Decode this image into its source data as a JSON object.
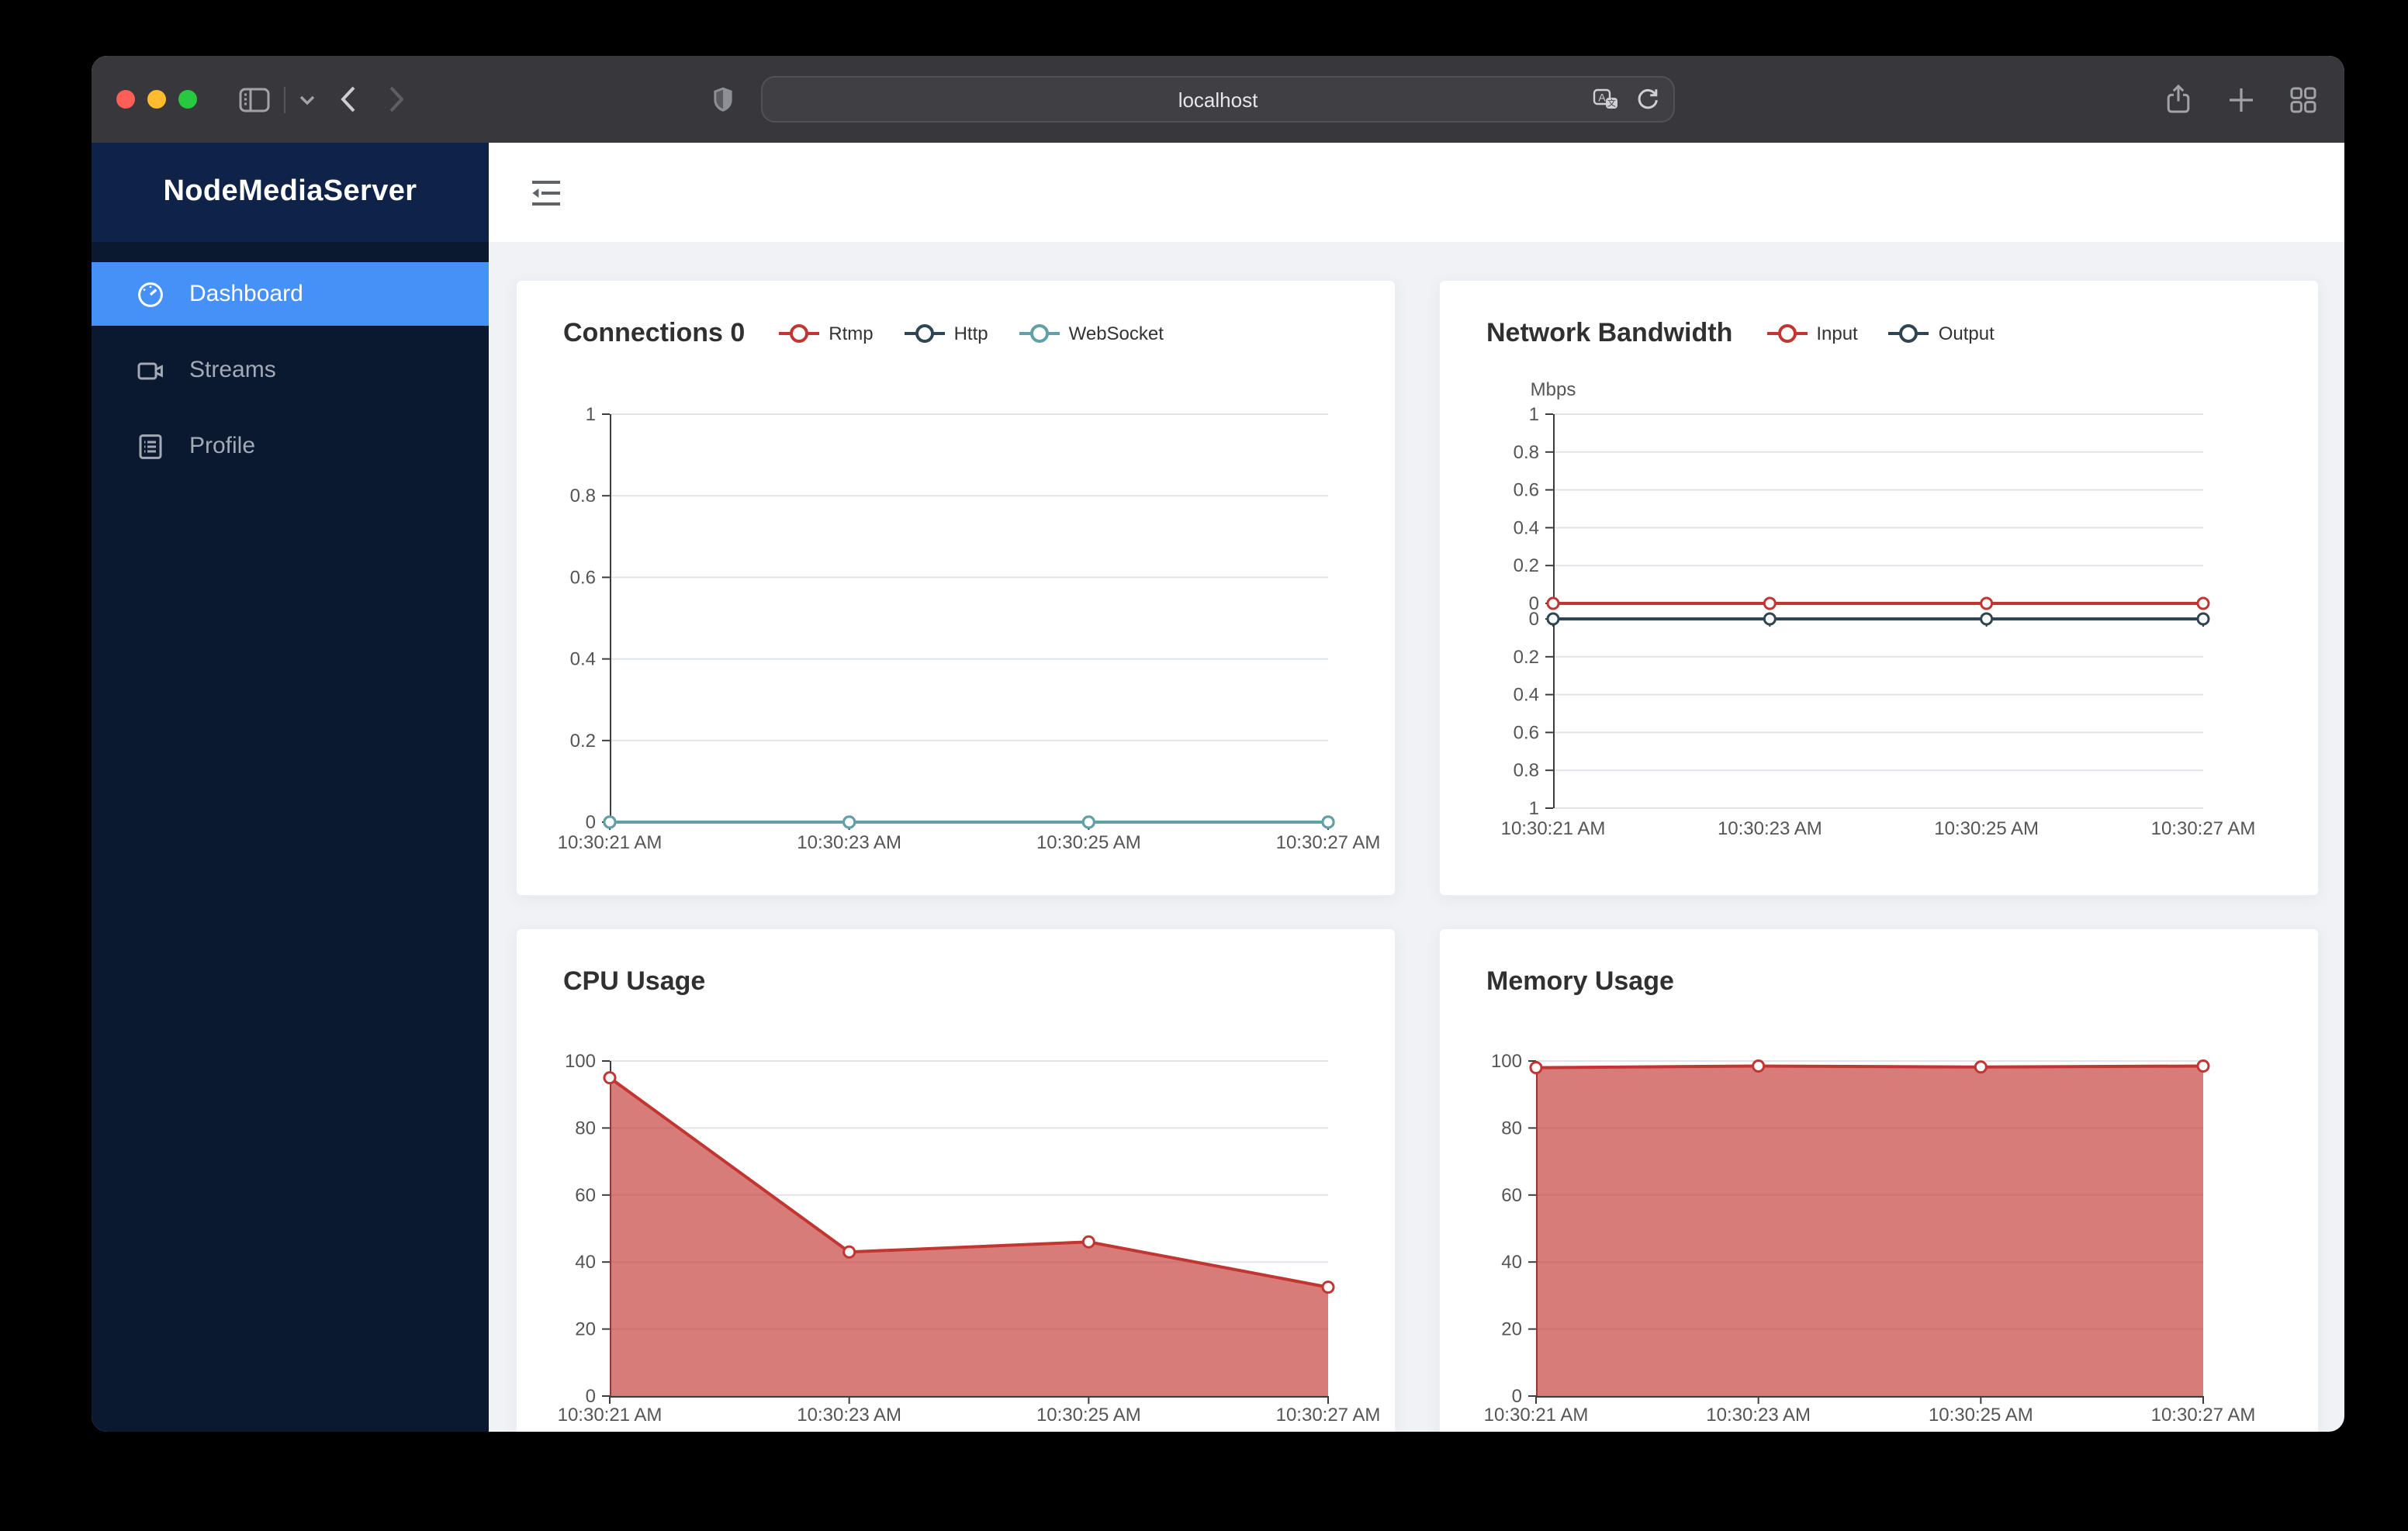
{
  "browser": {
    "address": "localhost",
    "toolbar_icons": [
      "traffic-lights",
      "sidebar-panel",
      "chevron-down",
      "back-arrow",
      "forward-arrow",
      "shield",
      "translate",
      "reload",
      "share",
      "new-tab",
      "tab-overview"
    ]
  },
  "sidebar": {
    "title": "NodeMediaServer",
    "items": [
      {
        "label": "Dashboard",
        "icon": "gauge-icon",
        "active": true
      },
      {
        "label": "Streams",
        "icon": "video-camera-icon",
        "active": false
      },
      {
        "label": "Profile",
        "icon": "document-list-icon",
        "active": false
      }
    ]
  },
  "colors": {
    "active_menu_blue": "#4691f7",
    "sidebar_bg": "#0a1830",
    "sidebar_header_bg": "#0e2347",
    "content_bg": "#f0f2f5",
    "echarts_red": "#c23531",
    "echarts_dark": "#2f4554",
    "echarts_teal": "#61a0a8",
    "area_fill": "rgba(194,53,49,0.65)"
  },
  "chart_data": [
    {
      "type": "line",
      "title": "Connections 0",
      "show_legend": true,
      "x": [
        "10:30:21 AM",
        "10:30:23 AM",
        "10:30:25 AM",
        "10:30:27 AM"
      ],
      "ylim": [
        0,
        1
      ],
      "yticks": [
        0,
        0.2,
        0.4,
        0.6,
        0.8,
        1
      ],
      "series": [
        {
          "name": "Rtmp",
          "color": "#c23531",
          "values": [
            0,
            0,
            0,
            0
          ]
        },
        {
          "name": "Http",
          "color": "#2f4554",
          "values": [
            0,
            0,
            0,
            0
          ]
        },
        {
          "name": "WebSocket",
          "color": "#61a0a8",
          "values": [
            0,
            0,
            0,
            0
          ]
        }
      ],
      "legend_position": "top",
      "grid_lines": true
    },
    {
      "type": "line",
      "title": "Network Bandwidth",
      "ylabel": "Mbps",
      "show_legend": true,
      "x": [
        "10:30:21 AM",
        "10:30:23 AM",
        "10:30:25 AM",
        "10:30:27 AM"
      ],
      "grids": [
        {
          "ylim": [
            0,
            1
          ],
          "yticks": [
            1,
            0.8,
            0.6,
            0.4,
            0.2,
            0
          ],
          "inverted": false
        },
        {
          "ylim": [
            0,
            1
          ],
          "yticks": [
            0,
            0.2,
            0.4,
            0.6,
            0.8,
            1
          ],
          "inverted": true
        }
      ],
      "series": [
        {
          "name": "Input",
          "color": "#c23531",
          "values": [
            0,
            0,
            0,
            0
          ],
          "grid": 0
        },
        {
          "name": "Output",
          "color": "#2f4554",
          "values": [
            0,
            0,
            0,
            0
          ],
          "grid": 1
        }
      ],
      "legend_position": "top",
      "grid_lines": true
    },
    {
      "type": "area",
      "title": "CPU Usage",
      "show_legend": false,
      "x": [
        "10:30:21 AM",
        "10:30:23 AM",
        "10:30:25 AM",
        "10:30:27 AM"
      ],
      "ylim": [
        0,
        100
      ],
      "yticks": [
        0,
        20,
        40,
        60,
        80,
        100
      ],
      "series": [
        {
          "name": "CPU",
          "color": "#c23531",
          "fill": "rgba(194,53,49,0.65)",
          "values": [
            95,
            43,
            46,
            32.5
          ]
        }
      ],
      "grid_lines": true
    },
    {
      "type": "area",
      "title": "Memory Usage",
      "show_legend": false,
      "x": [
        "10:30:21 AM",
        "10:30:23 AM",
        "10:30:25 AM",
        "10:30:27 AM"
      ],
      "ylim": [
        0,
        100
      ],
      "yticks": [
        0,
        20,
        40,
        60,
        80,
        100
      ],
      "series": [
        {
          "name": "Memory",
          "color": "#c23531",
          "fill": "rgba(194,53,49,0.65)",
          "values": [
            98,
            98.5,
            98.2,
            98.5
          ]
        }
      ],
      "grid_lines": true
    }
  ]
}
